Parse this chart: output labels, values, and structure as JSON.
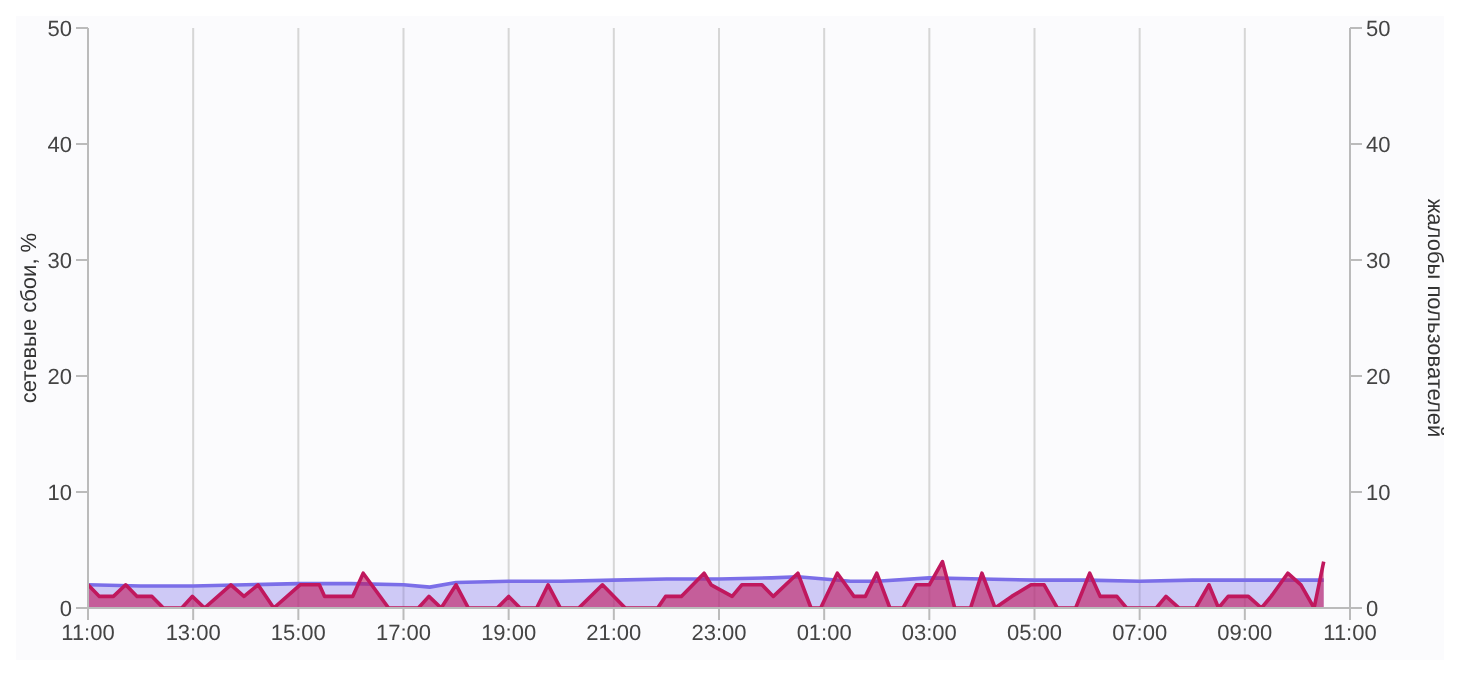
{
  "chart_data": {
    "type": "area",
    "ylabel": "сетевые сбои, %",
    "y2label": "жалобы пользователей",
    "xlim": [
      "--01-01T11:00",
      "--01-02T11:00"
    ],
    "xticks": [
      {
        "value": "--01-01T11:00",
        "label": "11:00"
      },
      {
        "value": "--01-01T13:00",
        "label": "13:00"
      },
      {
        "value": "--01-01T15:00",
        "label": "15:00"
      },
      {
        "value": "--01-01T17:00",
        "label": "17:00"
      },
      {
        "value": "--01-01T19:00",
        "label": "19:00"
      },
      {
        "value": "--01-01T21:00",
        "label": "21:00"
      },
      {
        "value": "--01-01T23:00",
        "label": "23:00"
      },
      {
        "value": "--01-02T01:00",
        "label": "01:00"
      },
      {
        "value": "--01-02T03:00",
        "label": "03:00"
      },
      {
        "value": "--01-02T05:00",
        "label": "05:00"
      },
      {
        "value": "--01-02T07:00",
        "label": "07:00"
      },
      {
        "value": "--01-02T09:00",
        "label": "09:00"
      },
      {
        "value": "--01-02T11:00",
        "label": "11:00"
      }
    ],
    "ylim": [
      0,
      50
    ],
    "yticks": [
      0,
      10,
      20,
      30,
      40,
      50
    ],
    "y2lim": [
      0,
      50
    ],
    "y2ticks": [
      0,
      10,
      20,
      30,
      40,
      50
    ],
    "grid": true,
    "series": [
      {
        "color": "#7b6ee8",
        "x": [
          "--01-01T11:00",
          "--01-01T12:00",
          "--01-01T13:00",
          "--01-01T14:00",
          "--01-01T15:00",
          "--01-01T16:00",
          "--01-01T17:00",
          "--01-01T17:30",
          "--01-01T18:00",
          "--01-01T19:00",
          "--01-01T20:00",
          "--01-01T21:00",
          "--01-01T22:00",
          "--01-01T23:00",
          "--01-02T00:00",
          "--01-02T00:30",
          "--01-02T01:00",
          "--01-02T01:30",
          "--01-02T02:00",
          "--01-02T03:00",
          "--01-02T04:00",
          "--01-02T05:00",
          "--01-02T06:00",
          "--01-02T07:00",
          "--01-02T08:00",
          "--01-02T09:00",
          "--01-02T10:00",
          "--01-02T10:30"
        ],
        "values": [
          2.0,
          1.9,
          1.9,
          2.0,
          2.1,
          2.1,
          2.0,
          1.8,
          2.2,
          2.3,
          2.3,
          2.4,
          2.5,
          2.5,
          2.6,
          2.7,
          2.5,
          2.3,
          2.3,
          2.6,
          2.5,
          2.4,
          2.4,
          2.3,
          2.4,
          2.4,
          2.4,
          2.4
        ]
      },
      {
        "color": "#c0185e",
        "axis": "y2",
        "x": [
          "--01-01T11:00",
          "--01-01T11:13",
          "--01-01T11:29",
          "--01-01T11:43",
          "--01-01T11:56",
          "--01-01T12:13",
          "--01-01T12:26",
          "--01-01T12:47",
          "--01-01T12:59",
          "--01-01T13:13",
          "--01-01T13:43",
          "--01-01T13:58",
          "--01-01T14:14",
          "--01-01T14:32",
          "--01-01T15:02",
          "--01-01T15:24",
          "--01-01T15:30",
          "--01-01T16:02",
          "--01-01T16:14",
          "--01-01T16:43",
          "--01-01T17:17",
          "--01-01T17:29",
          "--01-01T17:43",
          "--01-01T18:00",
          "--01-01T18:14",
          "--01-01T18:47",
          "--01-01T19:00",
          "--01-01T19:13",
          "--01-01T19:32",
          "--01-01T19:45",
          "--01-01T19:59",
          "--01-01T20:20",
          "--01-01T20:47",
          "--01-01T21:13",
          "--01-01T21:50",
          "--01-01T21:59",
          "--01-01T22:17",
          "--01-01T22:43",
          "--01-01T22:51",
          "--01-01T23:15",
          "--01-01T23:26",
          "--01-01T23:49",
          "--01-02T00:02",
          "--01-02T00:30",
          "--01-02T00:45",
          "--01-02T00:56",
          "--01-02T01:15",
          "--01-02T01:34",
          "--01-02T01:47",
          "--01-02T02:00",
          "--01-02T02:15",
          "--01-02T02:30",
          "--01-02T02:45",
          "--01-02T03:00",
          "--01-02T03:15",
          "--01-02T03:29",
          "--01-02T03:47",
          "--01-02T04:00",
          "--01-02T04:15",
          "--01-02T04:34",
          "--01-02T04:56",
          "--01-02T05:11",
          "--01-02T05:26",
          "--01-02T05:47",
          "--01-02T06:03",
          "--01-02T06:15",
          "--01-02T06:34",
          "--01-02T06:45",
          "--01-02T07:19",
          "--01-02T07:30",
          "--01-02T07:45",
          "--01-02T08:04",
          "--01-02T08:19",
          "--01-02T08:30",
          "--01-02T08:41",
          "--01-02T09:04",
          "--01-02T09:19",
          "--01-02T09:30",
          "--01-02T09:49",
          "--01-02T10:04",
          "--01-02T10:19",
          "--01-02T10:30"
        ],
        "values": [
          2,
          1,
          1,
          2,
          1,
          1,
          0,
          0,
          1,
          0,
          2,
          1,
          2,
          0,
          2,
          2,
          1,
          1,
          3,
          0,
          0,
          1,
          0,
          2,
          0,
          0,
          1,
          0,
          0,
          2,
          0,
          0,
          2,
          0,
          0,
          1,
          1,
          3,
          2,
          1,
          2,
          2,
          1,
          3,
          0,
          0,
          3,
          1,
          1,
          3,
          0,
          0,
          2,
          2,
          4,
          0,
          0,
          3,
          0,
          1,
          2,
          2,
          0,
          0,
          3,
          1,
          1,
          0,
          0,
          1,
          0,
          0,
          2,
          0,
          1,
          1,
          0,
          1,
          3,
          2,
          0,
          4
        ]
      }
    ]
  }
}
